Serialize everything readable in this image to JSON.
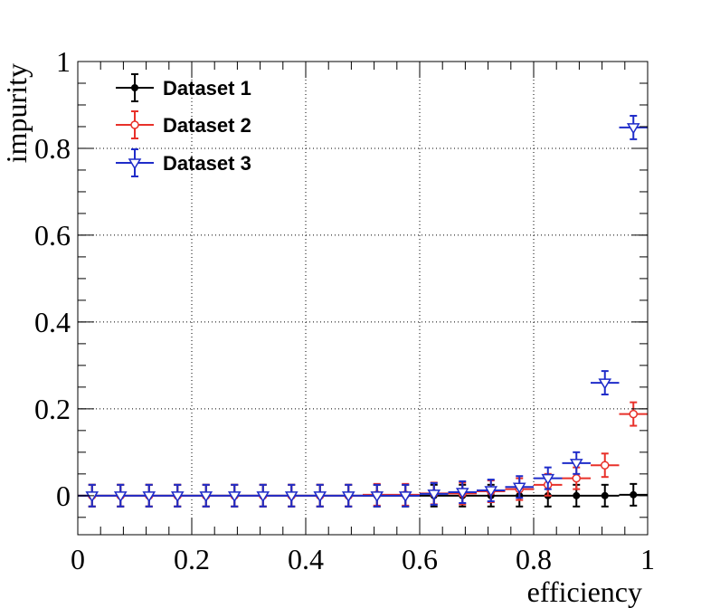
{
  "chart_data": {
    "type": "scatter",
    "title": "",
    "xlabel": "efficiency",
    "ylabel": "impurity",
    "xlim": [
      0,
      1
    ],
    "ylim": [
      -0.09,
      1
    ],
    "grid": true,
    "legend_position": "top-left",
    "x_ticks": [
      "0",
      "0.2",
      "0.4",
      "0.6",
      "0.8",
      "1"
    ],
    "y_ticks": [
      "0",
      "0.2",
      "0.4",
      "0.6",
      "0.8",
      "1"
    ],
    "series": [
      {
        "name": "Dataset 1",
        "color": "#000000",
        "marker": "filled-circle",
        "x": [
          0.025,
          0.075,
          0.125,
          0.175,
          0.225,
          0.275,
          0.325,
          0.375,
          0.425,
          0.475,
          0.525,
          0.575,
          0.625,
          0.675,
          0.725,
          0.775,
          0.825,
          0.875,
          0.925,
          0.975
        ],
        "values": [
          0,
          0,
          0,
          0,
          0,
          0,
          0,
          0,
          0,
          0,
          0,
          0,
          0,
          0,
          0,
          0,
          0,
          0,
          0,
          0.002
        ],
        "xerr": 0.025,
        "yerr": [
          0.025,
          0.025,
          0.025,
          0.025,
          0.025,
          0.025,
          0.025,
          0.025,
          0.025,
          0.025,
          0.025,
          0.025,
          0.025,
          0.025,
          0.025,
          0.025,
          0.025,
          0.025,
          0.025,
          0.025
        ]
      },
      {
        "name": "Dataset 2",
        "color": "#e8312a",
        "marker": "open-circle",
        "x": [
          0.025,
          0.075,
          0.125,
          0.175,
          0.225,
          0.275,
          0.325,
          0.375,
          0.425,
          0.475,
          0.525,
          0.575,
          0.625,
          0.675,
          0.725,
          0.775,
          0.825,
          0.875,
          0.925,
          0.975
        ],
        "values": [
          0,
          0,
          0,
          0,
          0,
          0,
          0,
          0,
          0,
          0,
          0.002,
          0.002,
          0.005,
          0.005,
          0.01,
          0.015,
          0.025,
          0.04,
          0.07,
          0.188
        ],
        "xerr": 0.025,
        "yerr": [
          0.025,
          0.025,
          0.025,
          0.025,
          0.025,
          0.025,
          0.025,
          0.025,
          0.025,
          0.025,
          0.025,
          0.025,
          0.025,
          0.025,
          0.025,
          0.025,
          0.025,
          0.025,
          0.027,
          0.027
        ]
      },
      {
        "name": "Dataset 3",
        "color": "#1f2cc9",
        "marker": "open-triangle-down",
        "x": [
          0.025,
          0.075,
          0.125,
          0.175,
          0.225,
          0.275,
          0.325,
          0.375,
          0.425,
          0.475,
          0.525,
          0.575,
          0.625,
          0.675,
          0.725,
          0.775,
          0.825,
          0.875,
          0.925,
          0.975
        ],
        "values": [
          0,
          0,
          0,
          0,
          0,
          0,
          0,
          0,
          0,
          0,
          0,
          0,
          0.004,
          0.008,
          0.012,
          0.02,
          0.04,
          0.075,
          0.26,
          0.848
        ],
        "xerr": 0.025,
        "yerr": [
          0.025,
          0.025,
          0.025,
          0.025,
          0.025,
          0.025,
          0.025,
          0.025,
          0.025,
          0.025,
          0.025,
          0.025,
          0.025,
          0.025,
          0.025,
          0.025,
          0.025,
          0.025,
          0.027,
          0.027
        ]
      }
    ]
  }
}
